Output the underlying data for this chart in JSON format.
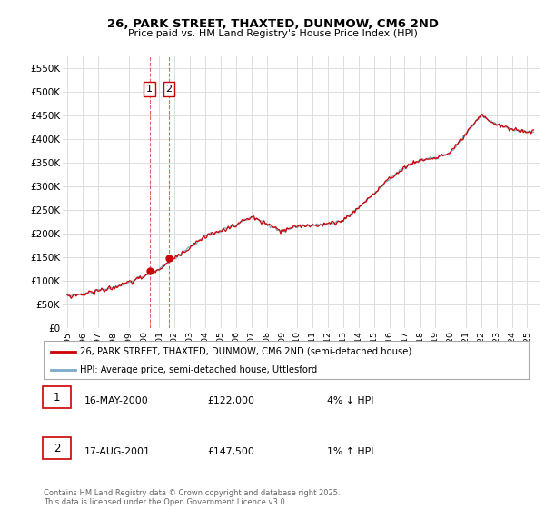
{
  "title": "26, PARK STREET, THAXTED, DUNMOW, CM6 2ND",
  "subtitle": "Price paid vs. HM Land Registry's House Price Index (HPI)",
  "ylabel_ticks": [
    "£0",
    "£50K",
    "£100K",
    "£150K",
    "£200K",
    "£250K",
    "£300K",
    "£350K",
    "£400K",
    "£450K",
    "£500K",
    "£550K"
  ],
  "ytick_values": [
    0,
    50000,
    100000,
    150000,
    200000,
    250000,
    300000,
    350000,
    400000,
    450000,
    500000,
    550000
  ],
  "ylim": [
    0,
    575000
  ],
  "xlim_start": 1994.7,
  "xlim_end": 2025.8,
  "xtick_years": [
    1995,
    1996,
    1997,
    1998,
    1999,
    2000,
    2001,
    2002,
    2003,
    2004,
    2005,
    2006,
    2007,
    2008,
    2009,
    2010,
    2011,
    2012,
    2013,
    2014,
    2015,
    2016,
    2017,
    2018,
    2019,
    2020,
    2021,
    2022,
    2023,
    2024,
    2025
  ],
  "red_line_color": "#cc0000",
  "blue_line_color": "#7aaaca",
  "marker_color": "#cc0000",
  "sale1_x": 2000.37,
  "sale1_y": 122000,
  "sale2_x": 2001.63,
  "sale2_y": 147500,
  "legend_line1": "26, PARK STREET, THAXTED, DUNMOW, CM6 2ND (semi-detached house)",
  "legend_line2": "HPI: Average price, semi-detached house, Uttlesford",
  "table_row1": [
    "1",
    "16-MAY-2000",
    "£122,000",
    "4% ↓ HPI"
  ],
  "table_row2": [
    "2",
    "17-AUG-2001",
    "£147,500",
    "1% ↑ HPI"
  ],
  "footer": "Contains HM Land Registry data © Crown copyright and database right 2025.\nThis data is licensed under the Open Government Licence v3.0.",
  "bg_color": "#ffffff",
  "plot_bg_color": "#ffffff",
  "grid_color": "#dddddd",
  "vline_color": "#cc0000"
}
